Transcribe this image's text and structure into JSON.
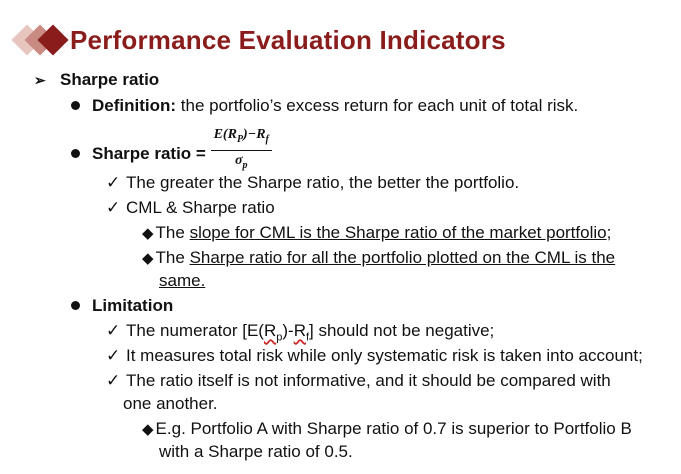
{
  "title": "Performance Evaluation Indicators",
  "sections": {
    "sharpe_heading": "Sharpe ratio",
    "definition_label": "Definition:",
    "definition_text": " the portfolio’s excess return for each unit of total risk.",
    "formula_label": "Sharpe ratio =",
    "formula_numerator": "E(RP)−Rf",
    "formula_denominator": "σp",
    "check1": "The greater the Sharpe ratio, the better the portfolio.",
    "check2": "CML & Sharpe ratio",
    "sub1_prefix": "The ",
    "sub1_underlined": "slope for CML is the Sharpe ratio of the market portfolio",
    "sub1_suffix": ";",
    "sub2_prefix": "The ",
    "sub2_underlined_line1": "Sharpe ratio for all the portfolio plotted on the CML is the",
    "sub2_underlined_line2": "same.",
    "limitation_label": "Limitation",
    "lim1_prefix": "The numerator [E(",
    "lim1_rp": "Rp",
    "lim1_mid": ")-",
    "lim1_rf": "Rf",
    "lim1_suffix": "] should not be negative;",
    "lim2": "It measures total risk while only systematic risk is taken into account;",
    "lim3_line1": "The ratio itself is not informative, and it should be compared with",
    "lim3_line2": "one another.",
    "eg_line1": "E.g. Portfolio A with Sharpe ratio of 0.7 is superior to Portfolio B",
    "eg_line2": "with a Sharpe ratio of 0.5."
  }
}
